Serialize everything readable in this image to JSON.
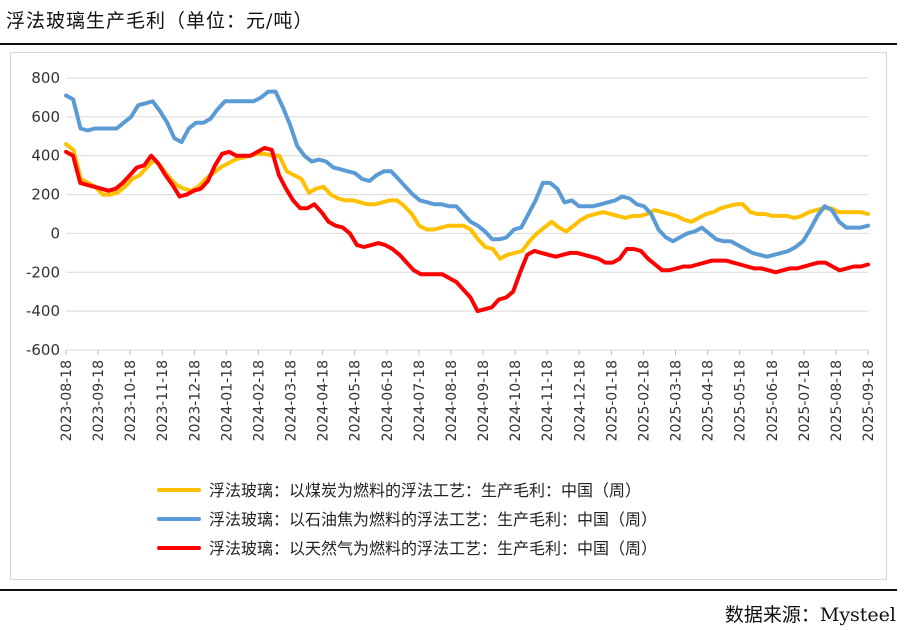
{
  "header": {
    "title": "浮法玻璃生产毛利（单位：元/吨）"
  },
  "footer": {
    "source": "数据来源：Mysteel"
  },
  "chart_data": {
    "type": "line",
    "title": "",
    "xlabel": "",
    "ylabel": "",
    "ylim": [
      -600,
      800
    ],
    "yticks": [
      800,
      600,
      400,
      200,
      0,
      -200,
      -400,
      -600
    ],
    "grid": "horizontal",
    "legend_position": "bottom",
    "x_tick_labels": [
      "2023-08-18",
      "2023-09-18",
      "2023-10-18",
      "2023-11-18",
      "2023-12-18",
      "2024-01-18",
      "2024-02-18",
      "2024-03-18",
      "2024-04-18",
      "2024-05-18",
      "2024-06-18",
      "2024-07-18",
      "2024-08-18",
      "2024-09-18",
      "2024-10-18",
      "2024-11-18",
      "2024-12-18",
      "2025-01-18",
      "2025-02-18",
      "2025-03-18",
      "2025-04-18",
      "2025-05-18",
      "2025-06-18",
      "2025-07-18",
      "2025-08-18",
      "2025-09-18"
    ],
    "series": [
      {
        "name": "浮法玻璃：以煤炭为燃料的浮法工艺：生产毛利：中国（周）",
        "color": "#FFC000",
        "values": [
          460,
          430,
          280,
          260,
          240,
          200,
          200,
          210,
          240,
          280,
          300,
          340,
          380,
          340,
          290,
          250,
          230,
          220,
          240,
          280,
          310,
          340,
          360,
          380,
          390,
          400,
          410,
          410,
          400,
          400,
          320,
          300,
          280,
          210,
          230,
          240,
          200,
          180,
          170,
          170,
          160,
          150,
          150,
          160,
          170,
          170,
          140,
          100,
          40,
          20,
          20,
          30,
          40,
          40,
          40,
          20,
          -30,
          -70,
          -80,
          -130,
          -110,
          -100,
          -90,
          -40,
          0,
          30,
          60,
          30,
          10,
          40,
          70,
          90,
          100,
          110,
          100,
          90,
          80,
          90,
          90,
          100,
          120,
          110,
          100,
          90,
          70,
          60,
          80,
          100,
          110,
          130,
          140,
          150,
          150,
          110,
          100,
          100,
          90,
          90,
          90,
          80,
          90,
          110,
          120,
          130,
          130,
          110,
          110,
          110,
          110,
          100
        ]
      },
      {
        "name": "浮法玻璃：以石油焦为燃料的浮法工艺：生产毛利：中国（周）",
        "color": "#5B9BD5",
        "values": [
          710,
          690,
          540,
          530,
          540,
          540,
          540,
          540,
          570,
          600,
          660,
          670,
          680,
          630,
          570,
          490,
          470,
          540,
          570,
          570,
          590,
          640,
          680,
          680,
          680,
          680,
          680,
          700,
          730,
          730,
          650,
          560,
          450,
          400,
          370,
          380,
          370,
          340,
          330,
          320,
          310,
          280,
          270,
          300,
          320,
          320,
          280,
          240,
          200,
          170,
          160,
          150,
          150,
          140,
          140,
          100,
          60,
          40,
          10,
          -30,
          -30,
          -20,
          20,
          30,
          100,
          170,
          260,
          260,
          230,
          160,
          170,
          140,
          140,
          140,
          150,
          160,
          170,
          190,
          180,
          150,
          140,
          100,
          20,
          -20,
          -40,
          -20,
          0,
          10,
          30,
          0,
          -30,
          -40,
          -40,
          -60,
          -80,
          -100,
          -110,
          -120,
          -110,
          -100,
          -90,
          -70,
          -40,
          20,
          90,
          140,
          120,
          60,
          30,
          30,
          30,
          40
        ]
      },
      {
        "name": "浮法玻璃：以天然气为燃料的浮法工艺：生产毛利：中国（周）",
        "color": "#FF0000",
        "values": [
          420,
          400,
          260,
          250,
          240,
          230,
          220,
          230,
          260,
          300,
          340,
          350,
          400,
          360,
          300,
          250,
          190,
          200,
          220,
          230,
          270,
          350,
          410,
          420,
          400,
          400,
          400,
          420,
          440,
          430,
          300,
          230,
          170,
          130,
          130,
          150,
          110,
          60,
          40,
          30,
          0,
          -60,
          -70,
          -60,
          -50,
          -60,
          -80,
          -110,
          -150,
          -190,
          -210,
          -210,
          -210,
          -210,
          -230,
          -250,
          -290,
          -330,
          -400,
          -390,
          -380,
          -340,
          -330,
          -300,
          -200,
          -110,
          -90,
          -100,
          -110,
          -120,
          -110,
          -100,
          -100,
          -110,
          -120,
          -130,
          -150,
          -150,
          -130,
          -80,
          -80,
          -90,
          -130,
          -160,
          -190,
          -190,
          -180,
          -170,
          -170,
          -160,
          -150,
          -140,
          -140,
          -140,
          -150,
          -160,
          -170,
          -180,
          -180,
          -190,
          -200,
          -190,
          -180,
          -180,
          -170,
          -160,
          -150,
          -150,
          -170,
          -190,
          -180,
          -170,
          -170,
          -160
        ]
      }
    ]
  }
}
